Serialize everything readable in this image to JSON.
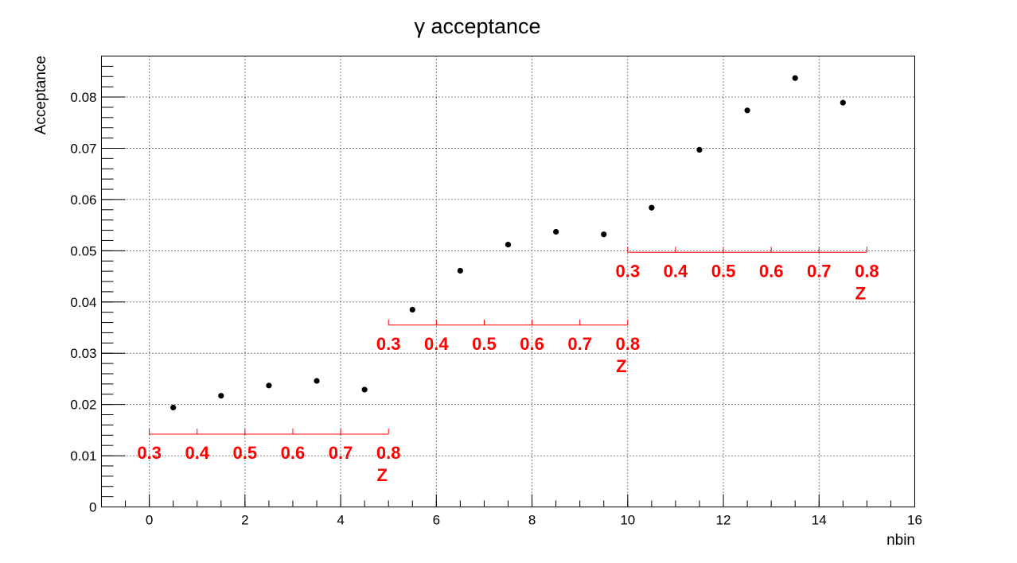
{
  "chart_data": {
    "type": "scatter",
    "title": "γ acceptance",
    "xlabel": "nbin",
    "ylabel": "Acceptance",
    "xlim": [
      -1,
      16
    ],
    "ylim": [
      0,
      0.088
    ],
    "grid": true,
    "x_ticks": [
      "0",
      "2",
      "4",
      "6",
      "8",
      "10",
      "12",
      "14",
      "16"
    ],
    "y_ticks": [
      "0",
      "0.01",
      "0.02",
      "0.03",
      "0.04",
      "0.05",
      "0.06",
      "0.07",
      "0.08"
    ],
    "marker_color": "#000000",
    "series": [
      {
        "x": [
          0.5,
          1.5,
          2.5,
          3.5,
          4.5,
          5.5,
          6.5,
          7.5,
          8.5,
          9.5,
          10.5,
          11.5,
          12.5,
          13.5,
          14.5
        ],
        "values": [
          0.0194,
          0.0217,
          0.0237,
          0.0246,
          0.0229,
          0.0385,
          0.0461,
          0.0512,
          0.0537,
          0.0532,
          0.0584,
          0.0697,
          0.0774,
          0.0837,
          0.0789
        ]
      }
    ],
    "secondary_axes": {
      "color": "#ff0000",
      "title": "Z",
      "tick_labels": [
        "0.3",
        "0.4",
        "0.5",
        "0.6",
        "0.7",
        "0.8"
      ],
      "axes": [
        {
          "x_start": 0,
          "x_end": 5,
          "y": 0.0142
        },
        {
          "x_start": 5,
          "x_end": 10,
          "y": 0.0355
        },
        {
          "x_start": 10,
          "x_end": 15,
          "y": 0.0497
        }
      ]
    }
  }
}
